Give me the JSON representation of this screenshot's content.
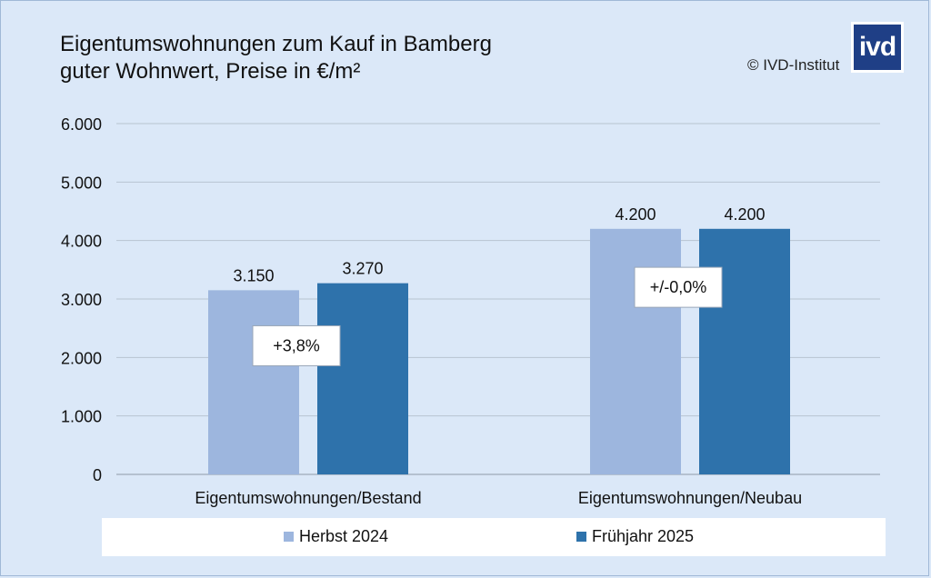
{
  "header": {
    "title_line1": "Eigentumswohnungen zum Kauf in Bamberg",
    "title_line2": "guter Wohnwert, Preise in €/m²",
    "copyright": "© IVD-Institut",
    "logo_text": "ivd"
  },
  "colors": {
    "background": "#dbe8f8",
    "series_herbst": "#9db6de",
    "series_fruehjahr": "#2e72ab",
    "gridline": "#b7c3d1"
  },
  "chart_data": {
    "type": "bar",
    "categories": [
      "Eigentumswohnungen/Bestand",
      "Eigentumswohnungen/Neubau"
    ],
    "series": [
      {
        "name": "Herbst 2024",
        "values": [
          3150,
          4200
        ],
        "labels": [
          "3.150",
          "4.200"
        ],
        "color": "#9db6de"
      },
      {
        "name": "Frühjahr 2025",
        "values": [
          3270,
          4200
        ],
        "labels": [
          "3.270",
          "4.200"
        ],
        "color": "#2e72ab"
      }
    ],
    "ylim": [
      0,
      6000
    ],
    "yticks": [
      0,
      1000,
      2000,
      3000,
      4000,
      5000,
      6000
    ],
    "ytick_labels": [
      "0",
      "1.000",
      "2.000",
      "3.000",
      "4.000",
      "5.000",
      "6.000"
    ],
    "annotations": [
      {
        "category": "Eigentumswohnungen/Bestand",
        "text": "+3,8%",
        "y_value": 2200
      },
      {
        "category": "Eigentumswohnungen/Neubau",
        "text": "+/-0,0%",
        "y_value": 3200
      }
    ],
    "grid": true,
    "legend_position": "bottom"
  }
}
